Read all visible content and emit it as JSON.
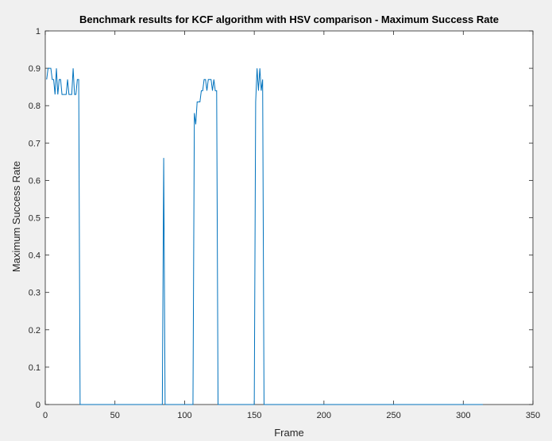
{
  "chart_data": {
    "type": "line",
    "title": "Benchmark results for KCF algorithm with HSV comparison - Maximum Success Rate",
    "xlabel": "Frame",
    "ylabel": "Maximum Success Rate",
    "xlim": [
      0,
      350
    ],
    "ylim": [
      0,
      1
    ],
    "xticks": [
      0,
      50,
      100,
      150,
      200,
      250,
      300,
      350
    ],
    "yticks": [
      0,
      0.1,
      0.2,
      0.3,
      0.4,
      0.5,
      0.6,
      0.7,
      0.8,
      0.9,
      1
    ],
    "xtick_labels": [
      "0",
      "50",
      "100",
      "150",
      "200",
      "250",
      "300",
      "350"
    ],
    "ytick_labels": [
      "0",
      "0.1",
      "0.2",
      "0.3",
      "0.4",
      "0.5",
      "0.6",
      "0.7",
      "0.8",
      "0.9",
      "1"
    ],
    "grid": false,
    "line_color": "#0072bd",
    "series": [
      {
        "x": [
          1,
          2,
          3,
          4,
          5,
          6,
          7,
          8,
          9,
          10,
          11,
          12,
          13,
          14,
          15,
          16,
          17,
          18,
          19,
          20,
          21,
          22,
          23,
          24,
          25,
          26,
          84,
          85,
          86,
          87,
          106,
          107,
          108,
          109,
          110,
          111,
          112,
          113,
          114,
          115,
          116,
          117,
          118,
          119,
          120,
          121,
          122,
          123,
          124,
          125,
          150,
          151,
          152,
          153,
          154,
          155,
          156,
          157,
          158,
          314
        ],
        "y": [
          0.87,
          0.9,
          0.9,
          0.9,
          0.87,
          0.87,
          0.83,
          0.9,
          0.83,
          0.87,
          0.87,
          0.83,
          0.83,
          0.83,
          0.83,
          0.87,
          0.83,
          0.83,
          0.83,
          0.9,
          0.83,
          0.83,
          0.87,
          0.87,
          0,
          0,
          0,
          0.66,
          0,
          0,
          0,
          0.78,
          0.75,
          0.81,
          0.81,
          0.81,
          0.84,
          0.84,
          0.87,
          0.87,
          0.84,
          0.87,
          0.87,
          0.87,
          0.84,
          0.87,
          0.84,
          0.84,
          0,
          0,
          0,
          0.81,
          0.9,
          0.84,
          0.9,
          0.84,
          0.87,
          0,
          0,
          0
        ]
      }
    ]
  }
}
